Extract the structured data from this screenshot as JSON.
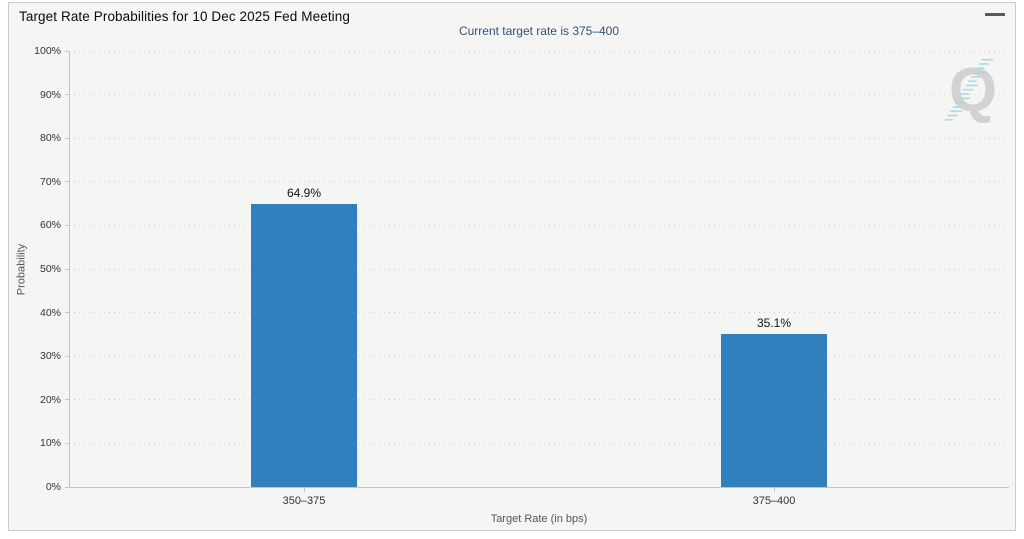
{
  "header": {
    "title": "Target Rate Probabilities for 10 Dec 2025 Fed Meeting",
    "menu_icon": "hamburger-menu-icon"
  },
  "subtitle": "Current target rate is 375–400",
  "watermark": {
    "letter": "Q",
    "icon": "quikstrike-q-watermark"
  },
  "colors": {
    "bar": "#2f80bd",
    "subtitle_text": "#33517d",
    "card_background": "#f5f5f4",
    "card_border": "#cccccc",
    "gridline": "#cfcfcf",
    "watermark_gray": "#c9c9c9",
    "watermark_blue": "#aed9f1"
  },
  "chart_data": {
    "type": "bar",
    "title": "Target Rate Probabilities for 10 Dec 2025 Fed Meeting",
    "subtitle": "Current target rate is 375–400",
    "categories": [
      "350–375",
      "375–400"
    ],
    "values": [
      64.9,
      35.1
    ],
    "value_labels": [
      "64.9%",
      "35.1%"
    ],
    "xlabel": "Target Rate (in bps)",
    "ylabel": "Probability",
    "ylim": [
      0,
      100
    ],
    "y_tick_step": 10,
    "y_tick_suffix": "%",
    "y_tick_labels": [
      "0%",
      "10%",
      "20%",
      "30%",
      "40%",
      "50%",
      "60%",
      "70%",
      "80%",
      "90%",
      "100%"
    ],
    "grid": "horizontal-dotted",
    "legend": "none",
    "bar_color": "#2f80bd"
  }
}
